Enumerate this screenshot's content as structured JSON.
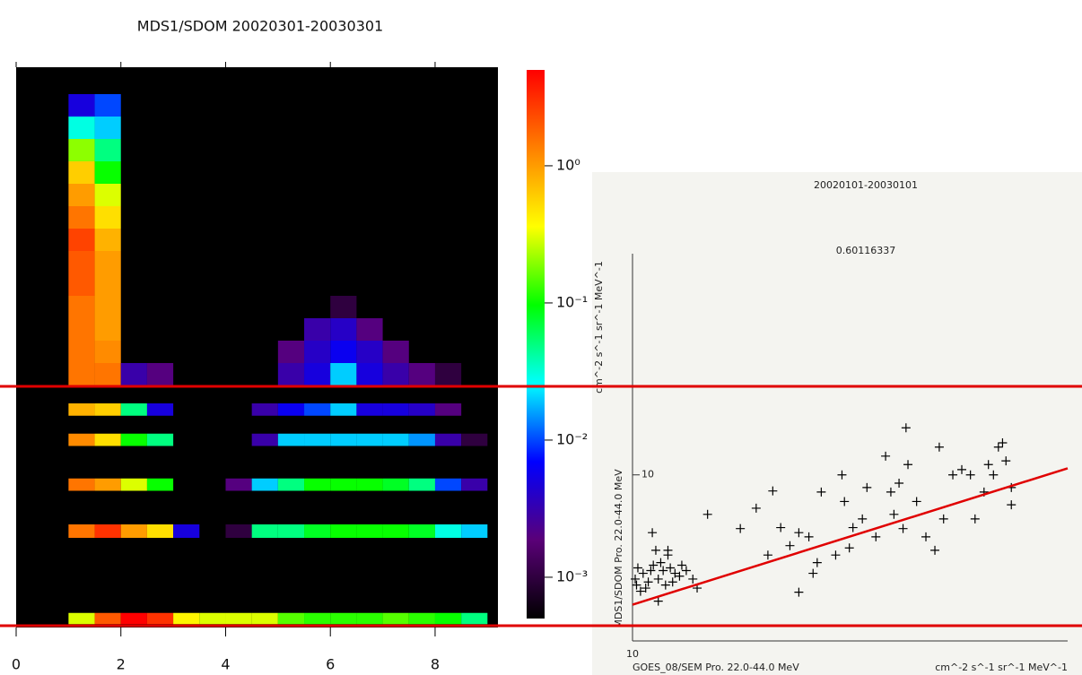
{
  "chart_data": [
    {
      "type": "heatmap",
      "title": "MDS1/SDOM 20020301-20030301",
      "xlim": [
        0,
        9.2
      ],
      "xticks": [
        0,
        2,
        4,
        6,
        8
      ],
      "ylim": [
        0,
        50
      ],
      "xbins": [
        1,
        1.5,
        2,
        2.5,
        3,
        3.5,
        4,
        4.5,
        5,
        5.5,
        6,
        6.5,
        7,
        7.5,
        8,
        8.5,
        9
      ],
      "rows": [
        {
          "range": [
            0.3,
            1.3
          ],
          "values": [
            0.3,
            2,
            5,
            3,
            0.4,
            0.3,
            0.3,
            0.3,
            0.15,
            0.12,
            0.12,
            0.12,
            0.15,
            0.12,
            0.1,
            0.05
          ]
        },
        {
          "range": [
            8,
            9.2
          ],
          "values": [
            1.5,
            3,
            1,
            0.5,
            0.005,
            null,
            0.001,
            0.05,
            0.05,
            0.08,
            0.1,
            0.1,
            0.1,
            0.08,
            0.03,
            0.02
          ]
        },
        {
          "range": [
            12.2,
            13.3
          ],
          "values": [
            1.5,
            1,
            0.3,
            0.1,
            null,
            null,
            0.002,
            0.02,
            0.05,
            0.1,
            0.1,
            0.1,
            0.08,
            0.05,
            0.01,
            0.003
          ]
        },
        {
          "range": [
            16.2,
            17.3
          ],
          "values": [
            1.2,
            0.5,
            0.1,
            0.05,
            null,
            null,
            null,
            0.003,
            0.02,
            0.02,
            0.02,
            0.02,
            0.02,
            0.015,
            0.003,
            0.001
          ]
        },
        {
          "range": [
            18.9,
            20
          ],
          "values": [
            0.8,
            0.6,
            0.05,
            0.005,
            null,
            null,
            null,
            0.003,
            0.006,
            0.01,
            0.02,
            0.005,
            0.005,
            0.004,
            0.002,
            null
          ]
        },
        {
          "range": [
            21.6,
            23.6
          ],
          "values": [
            1.5,
            1.5,
            0.003,
            0.002,
            null,
            null,
            null,
            null,
            0.003,
            0.005,
            0.02,
            0.005,
            0.003,
            0.002,
            0.001,
            null
          ]
        },
        {
          "range": [
            23.6,
            25.6
          ],
          "values": [
            1.5,
            1.2,
            null,
            null,
            null,
            null,
            null,
            null,
            0.002,
            0.004,
            0.006,
            0.004,
            0.002,
            null,
            null,
            null
          ]
        },
        {
          "range": [
            25.6,
            27.6
          ],
          "values": [
            1.5,
            1,
            null,
            null,
            null,
            null,
            null,
            null,
            null,
            0.003,
            0.004,
            0.002,
            null,
            null,
            null,
            null
          ]
        },
        {
          "range": [
            27.6,
            29.6
          ],
          "values": [
            1.5,
            1,
            null,
            null,
            null,
            null,
            null,
            null,
            null,
            null,
            0.001,
            null,
            null,
            null,
            null,
            null
          ]
        },
        {
          "range": [
            29.6,
            31.6
          ],
          "values": [
            2,
            1,
            null,
            null,
            null,
            null,
            null,
            null,
            null,
            null,
            null,
            null,
            null,
            null,
            null,
            null
          ]
        },
        {
          "range": [
            31.6,
            33.6
          ],
          "values": [
            2,
            1,
            null,
            null,
            null,
            null,
            null,
            null,
            null,
            null,
            null,
            null,
            null,
            null,
            null,
            null
          ]
        },
        {
          "range": [
            33.6,
            35.6
          ],
          "values": [
            2.5,
            0.8,
            null,
            null,
            null,
            null,
            null,
            null,
            null,
            null,
            null,
            null,
            null,
            null,
            null,
            null
          ]
        },
        {
          "range": [
            35.6,
            37.6
          ],
          "values": [
            1.5,
            0.5,
            null,
            null,
            null,
            null,
            null,
            null,
            null,
            null,
            null,
            null,
            null,
            null,
            null,
            null
          ]
        },
        {
          "range": [
            37.6,
            39.6
          ],
          "values": [
            1,
            0.3,
            null,
            null,
            null,
            null,
            null,
            null,
            null,
            null,
            null,
            null,
            null,
            null,
            null,
            null
          ]
        },
        {
          "range": [
            39.6,
            41.6
          ],
          "values": [
            0.6,
            0.1,
            null,
            null,
            null,
            null,
            null,
            null,
            null,
            null,
            null,
            null,
            null,
            null,
            null,
            null
          ]
        },
        {
          "range": [
            41.6,
            43.6
          ],
          "values": [
            0.2,
            0.05,
            null,
            null,
            null,
            null,
            null,
            null,
            null,
            null,
            null,
            null,
            null,
            null,
            null,
            null
          ]
        },
        {
          "range": [
            43.6,
            45.6
          ],
          "values": [
            0.03,
            0.02,
            null,
            null,
            null,
            null,
            null,
            null,
            null,
            null,
            null,
            null,
            null,
            null,
            null,
            null
          ]
        },
        {
          "range": [
            45.6,
            47.6
          ],
          "values": [
            0.005,
            0.01,
            null,
            null,
            null,
            null,
            null,
            null,
            null,
            null,
            null,
            null,
            null,
            null,
            null,
            null
          ]
        }
      ],
      "zlim": [
        0.0005,
        5
      ],
      "log_color": true,
      "colormap": [
        "#000000",
        "#5a0078",
        "#0000ff",
        "#00ffff",
        "#00ff00",
        "#ffff00",
        "#ff8000",
        "#ff0000"
      ],
      "colorbar_ticks": [
        {
          "value": 1,
          "label": "10⁰"
        },
        {
          "value": 0.1,
          "label": "10⁻¹"
        },
        {
          "value": 0.01,
          "label": "10⁻²"
        },
        {
          "value": 0.001,
          "label": "10⁻³"
        }
      ]
    },
    {
      "type": "scatter",
      "title": "20020101-20030101",
      "annotation": "0.60116337",
      "xlabel": "GOES_08/SEM Pro. 22.0-44.0 MeV",
      "xunit": "cm^-2 s^-1 sr^-1 MeV^-1",
      "ylabel": "MDS1/SDOM Pro. 22.0-44.0 MeV",
      "yunit": "cm^-2 s^-1 sr^-1 MeV^-1",
      "xlog": true,
      "ylog": true,
      "xlim": [
        10,
        50
      ],
      "ylim": [
        2.9,
        52
      ],
      "xticks": [
        10
      ],
      "yticks": [
        10
      ],
      "x": [
        10.1,
        10.2,
        10.4,
        10.5,
        10.7,
        10.8,
        11.0,
        11.2,
        11.3,
        11.5,
        11.7,
        11.9,
        12.2,
        12.5,
        10.3,
        10.6,
        11.1,
        11.4,
        11.0,
        10.9,
        12.7,
        11.6,
        12.0,
        10.15,
        10.76,
        11.4,
        13.2,
        14.9,
        16.8,
        15.8,
        17.3,
        16.5,
        18.5,
        17.9,
        19.2,
        20.1,
        21.9,
        23.4,
        21.7,
        23.8,
        25.5,
        26.0,
        27.2,
        27.7,
        28.6,
        29.6,
        30.6,
        31.1,
        27.5,
        32.7,
        34.9,
        35.5,
        37.3,
        38.7,
        39.3,
        39.8,
        40.6,
        36.7,
        33.8,
        22.6,
        21.2,
        19.8,
        24.6,
        26.3,
        31.6,
        26.8,
        22.3,
        18.5,
        19.5,
        40.6,
        38.0
      ],
      "values": [
        4.6,
        5.0,
        4.8,
        4.3,
        4.9,
        5.1,
        4.6,
        4.9,
        4.4,
        5.0,
        4.8,
        4.7,
        4.9,
        4.6,
        4.2,
        4.5,
        5.2,
        5.5,
        3.9,
        5.7,
        4.3,
        4.5,
        5.1,
        4.4,
        6.5,
        5.7,
        7.45,
        6.7,
        8.87,
        7.8,
        6.75,
        5.5,
        4.17,
        5.9,
        6.3,
        8.8,
        8.2,
        7.2,
        10.0,
        9.1,
        11.5,
        8.8,
        6.7,
        10.8,
        8.2,
        6.3,
        5.7,
        12.3,
        14.2,
        10.0,
        10.0,
        7.2,
        10.8,
        12.3,
        12.7,
        11.1,
        8.0,
        8.8,
        10.4,
        6.75,
        5.5,
        5.2,
        6.3,
        7.45,
        7.2,
        9.4,
        5.8,
        6.5,
        4.8,
        9.1,
        10.0
      ],
      "color": "#000000",
      "fit": {
        "x": [
          10,
          50
        ],
        "values": [
          3.8,
          10.5
        ],
        "color": "#e00000"
      }
    }
  ]
}
